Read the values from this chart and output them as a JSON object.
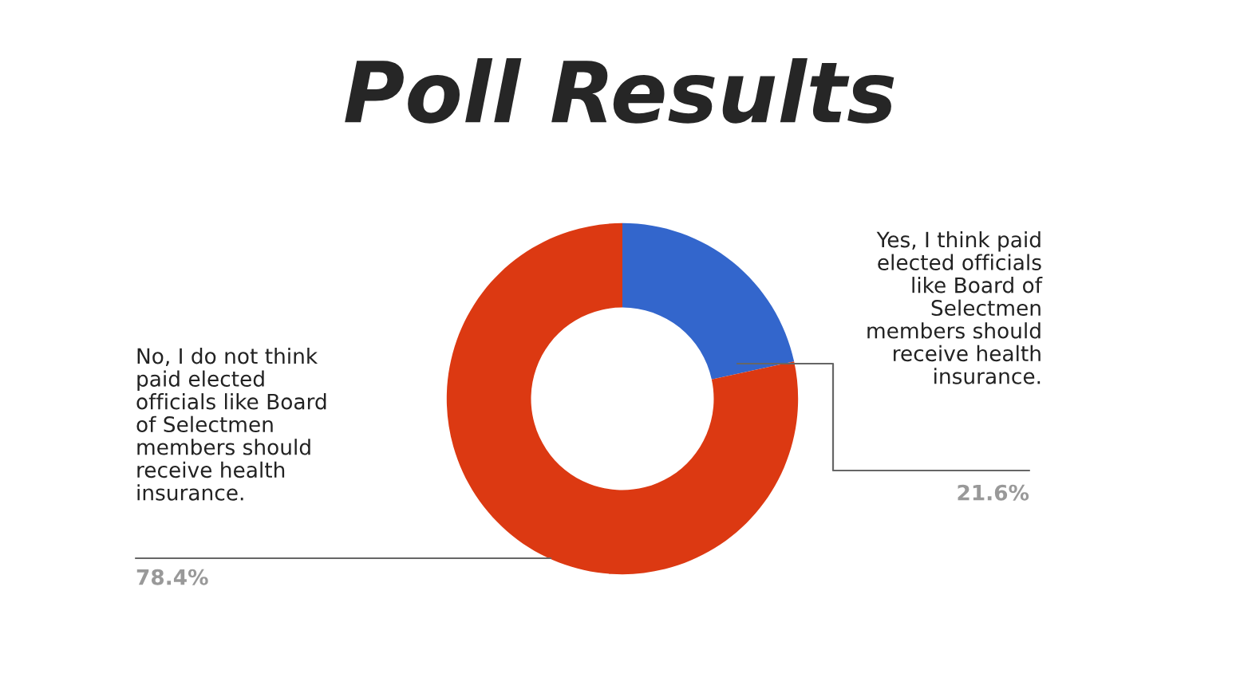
{
  "chart_data": {
    "type": "donut",
    "title": "Poll Results",
    "categories": [
      "Yes, I think paid\nelected officials\nlike Board of\nSelectmen\nmembers should\nreceive health\ninsurance.",
      "No, I do not think\npaid elected\nofficials like Board\nof Selectmen\nmembers should\nreceive health\ninsurance."
    ],
    "values": [
      21.6,
      78.4
    ],
    "colors": [
      "#3366cc",
      "#dc3912"
    ],
    "value_labels": [
      "21.6%",
      "78.4%"
    ],
    "legend": false
  }
}
